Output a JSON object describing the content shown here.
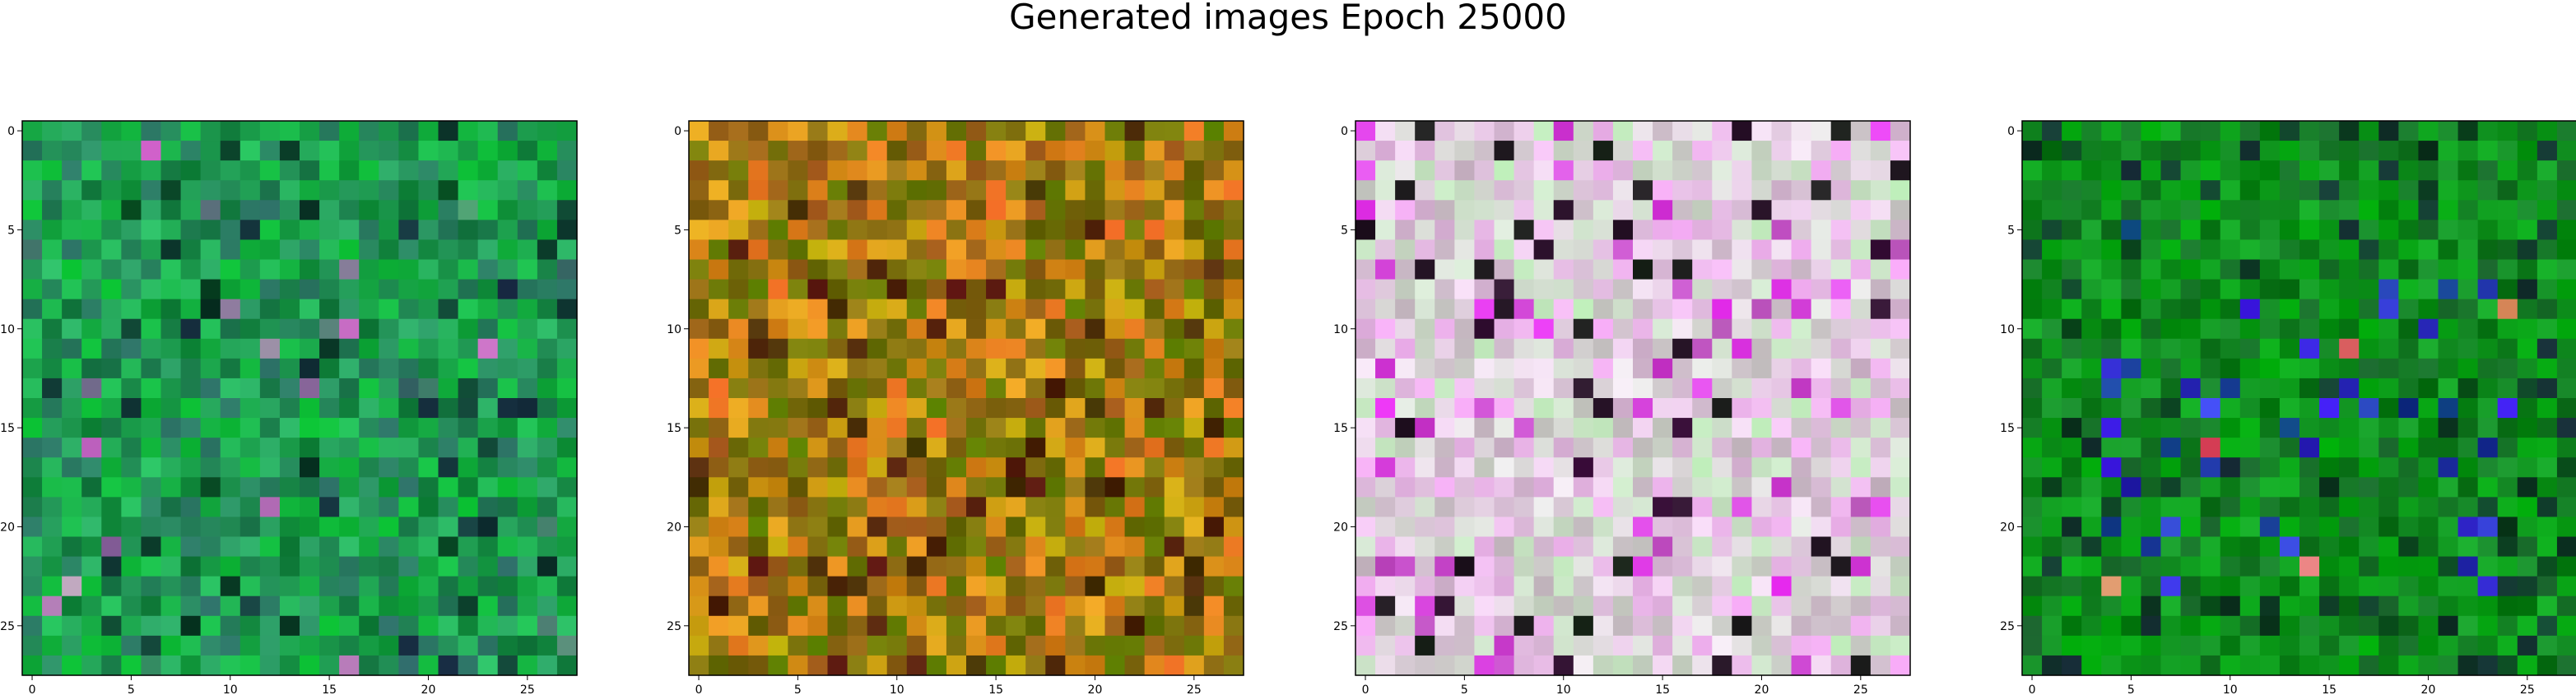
{
  "title": "Generated images Epoch 25000",
  "chart_data": [
    {
      "type": "heatmap",
      "grid": [
        28,
        28
      ],
      "palette": "green",
      "base_color": "#0f8a46",
      "xticks": [
        "0",
        "5",
        "10",
        "15",
        "20",
        "25"
      ],
      "yticks": [
        "0",
        "5",
        "10",
        "15",
        "20",
        "25"
      ],
      "xlim": [
        -0.5,
        27.5
      ],
      "ylim": [
        27.5,
        -0.5
      ],
      "grid_lines": false
    },
    {
      "type": "heatmap",
      "grid": [
        28,
        28
      ],
      "palette": "orange-olive",
      "base_color": "#a26a14",
      "xticks": [
        "0",
        "5",
        "10",
        "15",
        "20",
        "25"
      ],
      "yticks": [
        "0",
        "5",
        "10",
        "15",
        "20",
        "25"
      ],
      "xlim": [
        -0.5,
        27.5
      ],
      "ylim": [
        27.5,
        -0.5
      ],
      "grid_lines": false
    },
    {
      "type": "heatmap",
      "grid": [
        28,
        28
      ],
      "palette": "pastel-pink",
      "base_color": "#d8c3d4",
      "xticks": [
        "0",
        "5",
        "10",
        "15",
        "20",
        "25"
      ],
      "yticks": [
        "0",
        "5",
        "10",
        "15",
        "20",
        "25"
      ],
      "xlim": [
        -0.5,
        27.5
      ],
      "ylim": [
        27.5,
        -0.5
      ],
      "grid_lines": false
    },
    {
      "type": "heatmap",
      "grid": [
        28,
        28
      ],
      "palette": "deep-green",
      "base_color": "#0a7d1c",
      "xticks": [
        "0",
        "5",
        "10",
        "15",
        "20",
        "25"
      ],
      "yticks": [
        "0",
        "5",
        "10",
        "15",
        "20",
        "25"
      ],
      "xlim": [
        -0.5,
        27.5
      ],
      "ylim": [
        27.5,
        -0.5
      ],
      "grid_lines": false
    }
  ]
}
